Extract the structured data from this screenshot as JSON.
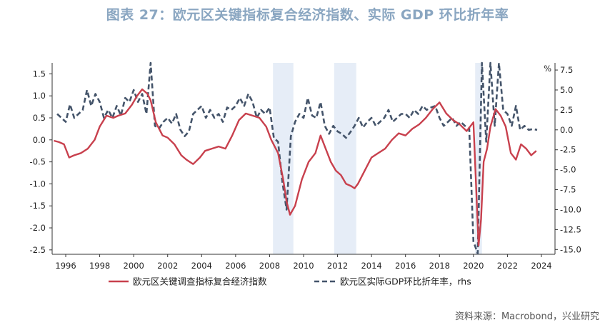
{
  "header": {
    "title": "图表 27：欧元区关键指标复合经济指数、实际 GDP 环比折年率"
  },
  "footer": {
    "source": "资料来源：Macrobond，兴业研究"
  },
  "colors": {
    "series_primary": "#c8404d",
    "series_secondary": "#44546a",
    "recession_shade": "#e6edf7",
    "axis": "#333333",
    "title": "#8aa6c1"
  },
  "chart_data": {
    "type": "line",
    "title": "",
    "xlabel": "",
    "ylabel_left": "",
    "ylabel_right": "%",
    "xlim": [
      1995.2,
      2024.8
    ],
    "ylim_left": [
      -2.6,
      1.75
    ],
    "ylim_right": [
      -15.6,
      8.4
    ],
    "yticks_left": [
      -2.5,
      -2.0,
      -1.5,
      -1.0,
      -0.5,
      0.0,
      0.5,
      1.0,
      1.5
    ],
    "ytick_labels_left": [
      "-2.5",
      "-2.0",
      "-1.5",
      "-1.0",
      "-0.5",
      "0.0",
      "0.5",
      "1.0",
      "1.5"
    ],
    "yticks_right": [
      -15.0,
      -12.5,
      -10.0,
      -7.5,
      -5.0,
      -2.5,
      0.0,
      2.5,
      5.0,
      7.5
    ],
    "ytick_labels_right": [
      "-15.0",
      "-12.5",
      "-10.0",
      "-7.5",
      "-5.0",
      "-2.5",
      "0.0",
      "2.5",
      "5.0",
      "7.5"
    ],
    "xticks": [
      1996,
      1998,
      2000,
      2002,
      2004,
      2006,
      2008,
      2010,
      2012,
      2014,
      2016,
      2018,
      2020,
      2022,
      2024
    ],
    "xtick_labels": [
      "1996",
      "1998",
      "2000",
      "2002",
      "2004",
      "2006",
      "2008",
      "2010",
      "2012",
      "2014",
      "2016",
      "2018",
      "2020",
      "2022",
      "2024"
    ],
    "grid": false,
    "legend_position": "bottom",
    "shaded_periods": [
      [
        2008.2,
        2009.4
      ],
      [
        2011.8,
        2013.1
      ],
      [
        2020.1,
        2020.5
      ]
    ],
    "series": [
      {
        "name": "欧元区关键调查指标复合经济指数",
        "axis": "left",
        "style": "solid",
        "x": [
          1995.3,
          1995.6,
          1995.9,
          1996.2,
          1996.5,
          1996.9,
          1997.3,
          1997.7,
          1998.0,
          1998.4,
          1998.8,
          1999.1,
          1999.5,
          1999.9,
          2000.2,
          2000.5,
          2000.8,
          2001.0,
          2001.3,
          2001.7,
          2002.0,
          2002.4,
          2002.8,
          2003.1,
          2003.5,
          2003.9,
          2004.2,
          2004.6,
          2005.0,
          2005.4,
          2005.8,
          2006.2,
          2006.6,
          2007.0,
          2007.4,
          2007.8,
          2008.1,
          2008.5,
          2008.8,
          2009.0,
          2009.2,
          2009.5,
          2009.9,
          2010.3,
          2010.7,
          2011.0,
          2011.3,
          2011.6,
          2011.9,
          2012.2,
          2012.5,
          2012.8,
          2013.0,
          2013.2,
          2013.6,
          2014.0,
          2014.4,
          2014.8,
          2015.2,
          2015.6,
          2016.0,
          2016.4,
          2016.8,
          2017.2,
          2017.6,
          2018.0,
          2018.4,
          2018.8,
          2019.2,
          2019.6,
          2020.0,
          2020.15,
          2020.3,
          2020.45,
          2020.6,
          2020.8,
          2021.0,
          2021.3,
          2021.6,
          2021.9,
          2022.2,
          2022.5,
          2022.8,
          2023.1,
          2023.4,
          2023.7
        ],
        "values": [
          -0.02,
          -0.05,
          -0.1,
          -0.4,
          -0.35,
          -0.3,
          -0.2,
          0.0,
          0.3,
          0.55,
          0.5,
          0.55,
          0.6,
          0.8,
          1.0,
          1.15,
          1.05,
          0.9,
          0.4,
          0.1,
          0.05,
          -0.1,
          -0.35,
          -0.45,
          -0.55,
          -0.4,
          -0.25,
          -0.2,
          -0.15,
          -0.2,
          0.1,
          0.45,
          0.6,
          0.55,
          0.5,
          0.3,
          0.0,
          -0.3,
          -0.9,
          -1.4,
          -1.7,
          -1.5,
          -0.9,
          -0.5,
          -0.3,
          0.1,
          -0.2,
          -0.5,
          -0.7,
          -0.8,
          -1.0,
          -1.05,
          -1.1,
          -1.0,
          -0.7,
          -0.4,
          -0.3,
          -0.2,
          0.0,
          0.15,
          0.1,
          0.25,
          0.35,
          0.5,
          0.7,
          0.85,
          0.6,
          0.45,
          0.35,
          0.2,
          0.4,
          -1.0,
          -2.4,
          -1.8,
          -0.5,
          -0.2,
          0.3,
          0.7,
          0.55,
          0.3,
          -0.3,
          -0.45,
          -0.1,
          -0.2,
          -0.35,
          -0.25
        ]
      },
      {
        "name": "欧元区实际GDP环比折年率，rhs",
        "axis": "right",
        "style": "dashed",
        "x": [
          1995.5,
          1996.0,
          1996.25,
          1996.5,
          1996.75,
          1997.0,
          1997.25,
          1997.5,
          1997.75,
          1998.0,
          1998.25,
          1998.5,
          1998.75,
          1999.0,
          1999.25,
          1999.5,
          1999.75,
          2000.0,
          2000.25,
          2000.5,
          2000.75,
          2001.0,
          2001.25,
          2001.5,
          2001.75,
          2002.0,
          2002.25,
          2002.5,
          2002.75,
          2003.0,
          2003.25,
          2003.5,
          2003.75,
          2004.0,
          2004.25,
          2004.5,
          2004.75,
          2005.0,
          2005.25,
          2005.5,
          2005.75,
          2006.0,
          2006.25,
          2006.5,
          2006.75,
          2007.0,
          2007.25,
          2007.5,
          2007.75,
          2008.0,
          2008.25,
          2008.5,
          2008.75,
          2009.0,
          2009.25,
          2009.5,
          2009.75,
          2010.0,
          2010.25,
          2010.5,
          2010.75,
          2011.0,
          2011.25,
          2011.5,
          2011.75,
          2012.0,
          2012.25,
          2012.5,
          2012.75,
          2013.0,
          2013.25,
          2013.5,
          2013.75,
          2014.0,
          2014.25,
          2014.5,
          2014.75,
          2015.0,
          2015.25,
          2015.5,
          2015.75,
          2016.0,
          2016.25,
          2016.5,
          2016.75,
          2017.0,
          2017.25,
          2017.5,
          2017.75,
          2018.0,
          2018.25,
          2018.5,
          2018.75,
          2019.0,
          2019.25,
          2019.5,
          2019.75,
          2020.0,
          2020.25,
          2020.5,
          2020.75,
          2021.0,
          2021.25,
          2021.5,
          2021.75,
          2022.0,
          2022.25,
          2022.5,
          2022.75,
          2023.0,
          2023.25,
          2023.5,
          2023.75
        ],
        "values": [
          2.0,
          1.0,
          3.2,
          1.5,
          2.0,
          2.5,
          5.0,
          3.0,
          4.5,
          3.5,
          1.5,
          2.5,
          1.5,
          3.0,
          1.8,
          4.0,
          3.5,
          5.0,
          3.5,
          4.5,
          2.0,
          8.5,
          0.5,
          0.2,
          1.0,
          1.5,
          0.8,
          2.0,
          0.0,
          -0.8,
          -0.2,
          2.0,
          2.5,
          3.0,
          1.5,
          2.5,
          1.5,
          2.0,
          1.0,
          2.8,
          2.5,
          3.0,
          4.0,
          3.0,
          4.5,
          3.5,
          1.5,
          2.5,
          2.0,
          2.8,
          -1.0,
          -1.5,
          -6.5,
          -10.0,
          -0.8,
          1.0,
          2.0,
          1.5,
          4.0,
          1.8,
          1.5,
          3.5,
          0.5,
          -0.5,
          0.5,
          -0.2,
          -0.5,
          -1.0,
          -0.3,
          0.5,
          1.5,
          0.3,
          1.0,
          1.5,
          0.5,
          1.0,
          1.5,
          2.5,
          1.0,
          1.5,
          2.0,
          2.0,
          1.5,
          2.5,
          2.0,
          3.0,
          2.5,
          2.8,
          3.0,
          1.5,
          0.5,
          1.0,
          1.5,
          0.5,
          1.0,
          0.5,
          0.2,
          -14.0,
          -15.5,
          8.5,
          -1.5,
          8.5,
          0.5,
          8.5,
          2.5,
          2.0,
          0.5,
          3.0,
          0.0,
          0.5,
          0.0,
          0.1,
          0.0
        ]
      }
    ]
  }
}
